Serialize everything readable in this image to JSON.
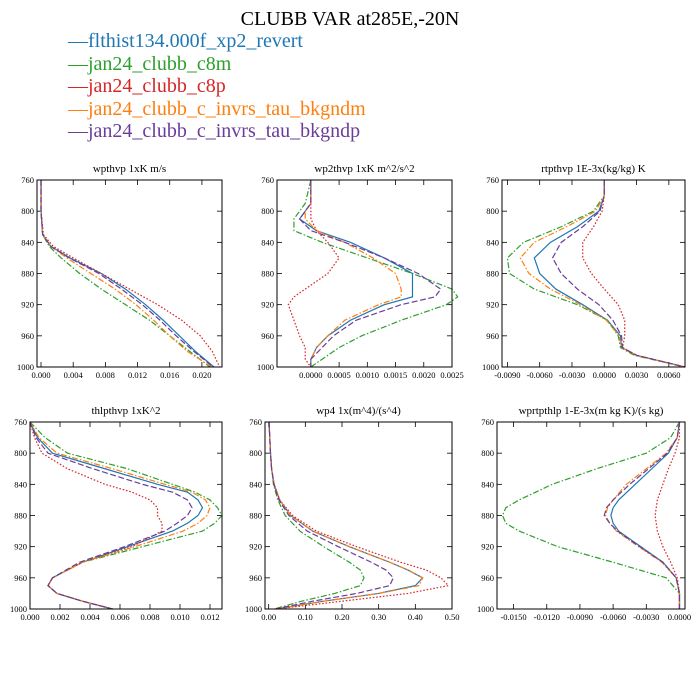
{
  "title": "CLUBB VAR at285E,-20N",
  "colors": {
    "blue": "#1f77b4",
    "green": "#2ca02c",
    "red": "#d62728",
    "orange": "#ff7f0e",
    "purple": "#6a3d9a"
  },
  "legend": [
    {
      "label": "flthist134.000f_xp2_revert",
      "color": "#1f77b4",
      "dash": "solid"
    },
    {
      "label": "jan24_clubb_c8m",
      "color": "#2ca02c",
      "dash": "dashdot"
    },
    {
      "label": "jan24_clubb_c8p",
      "color": "#d62728",
      "dash": "dot"
    },
    {
      "label": "jan24_clubb_c_invrs_tau_bkgndm",
      "color": "#ff7f0e",
      "dash": "dashdot"
    },
    {
      "label": "jan24_clubb_c_invrs_tau_bkgndp",
      "color": "#6a3d9a",
      "dash": "dash"
    }
  ],
  "chart_data": [
    {
      "type": "line",
      "title": "wpthvp   1xK m/s",
      "xlim": [
        -0.0005,
        0.0225
      ],
      "ylim": [
        760,
        1000
      ],
      "y_inverted": true,
      "yticks": [
        760,
        800,
        840,
        880,
        920,
        960,
        1000
      ],
      "xticks": [
        0,
        0.004,
        0.008,
        0.012,
        0.016,
        0.02
      ],
      "xticklabels": [
        "0.000",
        "0.004",
        "0.008",
        "0.012",
        "0.016",
        "0.020"
      ],
      "y": [
        760,
        800,
        830,
        845,
        860,
        880,
        900,
        920,
        940,
        960,
        980,
        1000
      ],
      "series": [
        {
          "values": [
            0,
            0,
            0.0002,
            0.0012,
            0.0036,
            0.0075,
            0.0105,
            0.013,
            0.0152,
            0.0172,
            0.0192,
            0.0215
          ]
        },
        {
          "values": [
            0,
            0,
            0.0002,
            0.001,
            0.0025,
            0.0048,
            0.0075,
            0.0105,
            0.0135,
            0.016,
            0.0185,
            0.021
          ]
        },
        {
          "values": [
            0,
            0,
            0.0003,
            0.0015,
            0.004,
            0.0075,
            0.011,
            0.0145,
            0.0175,
            0.0198,
            0.0213,
            0.0222
          ]
        },
        {
          "values": [
            0,
            0,
            0.0002,
            0.0012,
            0.0032,
            0.0062,
            0.0092,
            0.0118,
            0.014,
            0.016,
            0.0182,
            0.0212
          ]
        },
        {
          "values": [
            0,
            0,
            0.0002,
            0.0012,
            0.0035,
            0.0072,
            0.01,
            0.0126,
            0.0148,
            0.0168,
            0.019,
            0.0214
          ]
        }
      ]
    },
    {
      "type": "line",
      "title": "wp2thvp   1xK m^2/s^2",
      "xlim": [
        -0.0006,
        0.0025
      ],
      "ylim": [
        760,
        1000
      ],
      "y_inverted": true,
      "yticks": [
        760,
        800,
        840,
        880,
        920,
        960,
        1000
      ],
      "xticks": [
        0,
        0.0005,
        0.001,
        0.0015,
        0.002,
        0.0025
      ],
      "xticklabels": [
        "0.0000",
        "0.0005",
        "0.0010",
        "0.0015",
        "0.0020",
        "0.0025"
      ],
      "y": [
        760,
        790,
        800,
        810,
        825,
        840,
        860,
        880,
        900,
        910,
        920,
        940,
        960,
        975,
        990,
        1000
      ],
      "series": [
        {
          "values": [
            0,
            0,
            -0.0001,
            -0.0002,
            0.0001,
            0.0007,
            0.0013,
            0.0018,
            0.0018,
            0.0018,
            0.0013,
            0.0007,
            0.0003,
            0.0001,
            0,
            0
          ]
        },
        {
          "values": [
            0,
            -0.0001,
            -0.0002,
            -0.0003,
            -0.0003,
            0.0002,
            0.001,
            0.0018,
            0.0025,
            0.0026,
            0.0024,
            0.0016,
            0.0009,
            0.0005,
            0.0002,
            0
          ]
        },
        {
          "values": [
            0,
            0,
            0,
            0,
            0.0001,
            0.0003,
            0.0005,
            0.0003,
            -0.0001,
            -0.0003,
            -0.0004,
            -0.0003,
            -0.0002,
            -0.0001,
            -0.0001,
            0
          ]
        },
        {
          "values": [
            0,
            0,
            -0.0001,
            -0.0001,
            0.0001,
            0.0006,
            0.0011,
            0.0015,
            0.0016,
            0.0016,
            0.0012,
            0.0006,
            0.0003,
            0.0001,
            0,
            0
          ]
        },
        {
          "values": [
            0,
            0,
            -0.0001,
            -0.0002,
            0,
            0.0006,
            0.0013,
            0.0019,
            0.0023,
            0.0022,
            0.0016,
            0.0008,
            0.0004,
            0.0002,
            0,
            0
          ]
        }
      ]
    },
    {
      "type": "line",
      "title": "rtpthvp   1E-3x(kg/kg) K",
      "xlim": [
        -0.0095,
        0.0075
      ],
      "ylim": [
        760,
        1000
      ],
      "y_inverted": true,
      "yticks": [
        760,
        800,
        840,
        880,
        920,
        960,
        1000
      ],
      "xticks": [
        -0.009,
        -0.006,
        -0.003,
        0,
        0.003,
        0.006
      ],
      "xticklabels": [
        "-0.0090",
        "-0.0060",
        "-0.0030",
        "0.0000",
        "0.0030",
        "0.0060"
      ],
      "y": [
        760,
        780,
        800,
        820,
        840,
        860,
        880,
        900,
        920,
        940,
        960,
        975,
        985,
        1000
      ],
      "series": [
        {
          "values": [
            0,
            0,
            -0.0005,
            -0.0025,
            -0.005,
            -0.0065,
            -0.006,
            -0.0045,
            -0.002,
            0.0003,
            0.0015,
            0.0016,
            0.003,
            0.0075
          ]
        },
        {
          "values": [
            0,
            0,
            -0.001,
            -0.004,
            -0.0075,
            -0.009,
            -0.0088,
            -0.0065,
            -0.0025,
            0.0003,
            0.0013,
            0.0015,
            0.0028,
            0.0075
          ]
        },
        {
          "values": [
            0,
            0,
            -0.0002,
            -0.001,
            -0.002,
            -0.002,
            -0.0012,
            0,
            0.0013,
            0.0019,
            0.0019,
            0.0017,
            0.003,
            0.0075
          ]
        },
        {
          "values": [
            0,
            0,
            -0.0008,
            -0.0035,
            -0.0065,
            -0.0078,
            -0.007,
            -0.005,
            -0.0022,
            0.0002,
            0.0014,
            0.0016,
            0.003,
            0.0075
          ]
        },
        {
          "values": [
            0,
            0,
            -0.0004,
            -0.002,
            -0.004,
            -0.0048,
            -0.004,
            -0.0025,
            -0.0005,
            0.0008,
            0.0016,
            0.0017,
            0.003,
            0.0075
          ]
        }
      ]
    },
    {
      "type": "line",
      "title": "thlpthvp   1xK^2",
      "xlim": [
        0,
        0.0128
      ],
      "ylim": [
        760,
        1000
      ],
      "y_inverted": true,
      "yticks": [
        760,
        800,
        840,
        880,
        920,
        960,
        1000
      ],
      "xticks": [
        0,
        0.002,
        0.004,
        0.006,
        0.008,
        0.01,
        0.012
      ],
      "xticklabels": [
        "0.000",
        "0.002",
        "0.004",
        "0.006",
        "0.008",
        "0.010",
        "0.012"
      ],
      "y": [
        760,
        780,
        800,
        820,
        840,
        850,
        860,
        870,
        880,
        890,
        900,
        920,
        940,
        960,
        970,
        980,
        990,
        1000
      ],
      "series": [
        {
          "values": [
            0,
            0.0005,
            0.0015,
            0.005,
            0.0085,
            0.0105,
            0.0112,
            0.0115,
            0.0112,
            0.0105,
            0.0095,
            0.0065,
            0.0035,
            0.0015,
            0.0012,
            0.0018,
            0.0035,
            0.0055
          ]
        },
        {
          "values": [
            0,
            0.001,
            0.0025,
            0.0065,
            0.0095,
            0.011,
            0.012,
            0.0125,
            0.0128,
            0.0123,
            0.0115,
            0.0075,
            0.0035,
            0.0015,
            0.0012,
            0.0018,
            0.0035,
            0.0055
          ]
        },
        {
          "values": [
            0,
            0.0003,
            0.0008,
            0.0025,
            0.005,
            0.0068,
            0.008,
            0.0085,
            0.0085,
            0.0088,
            0.0088,
            0.0068,
            0.0035,
            0.0015,
            0.0012,
            0.0018,
            0.0035,
            0.0055
          ]
        },
        {
          "values": [
            0,
            0.0006,
            0.0018,
            0.0055,
            0.009,
            0.0108,
            0.0117,
            0.012,
            0.0118,
            0.0112,
            0.0102,
            0.007,
            0.0035,
            0.0015,
            0.0012,
            0.0018,
            0.0035,
            0.0055
          ]
        },
        {
          "values": [
            0,
            0.0004,
            0.0012,
            0.0042,
            0.0075,
            0.0095,
            0.0105,
            0.0108,
            0.0105,
            0.0098,
            0.009,
            0.0063,
            0.0033,
            0.0015,
            0.0012,
            0.0018,
            0.0035,
            0.0055
          ]
        }
      ]
    },
    {
      "type": "line",
      "title": "wp4   1x(m^4)/(s^4)",
      "xlim": [
        -0.01,
        0.5
      ],
      "ylim": [
        760,
        1000
      ],
      "y_inverted": true,
      "yticks": [
        760,
        800,
        840,
        880,
        920,
        960,
        1000
      ],
      "xticks": [
        0,
        0.1,
        0.2,
        0.3,
        0.4,
        0.5
      ],
      "xticklabels": [
        "0.00",
        "0.10",
        "0.20",
        "0.30",
        "0.40",
        "0.50"
      ],
      "y": [
        760,
        800,
        820,
        840,
        860,
        880,
        900,
        920,
        940,
        950,
        960,
        970,
        980,
        990,
        1000
      ],
      "series": [
        {
          "values": [
            0.001,
            0.005,
            0.008,
            0.015,
            0.03,
            0.06,
            0.12,
            0.22,
            0.33,
            0.38,
            0.42,
            0.4,
            0.3,
            0.15,
            0.02
          ]
        },
        {
          "values": [
            0.001,
            0.005,
            0.008,
            0.013,
            0.025,
            0.045,
            0.085,
            0.15,
            0.22,
            0.25,
            0.26,
            0.25,
            0.18,
            0.09,
            0.015
          ]
        },
        {
          "values": [
            0.001,
            0.005,
            0.008,
            0.015,
            0.03,
            0.065,
            0.13,
            0.24,
            0.36,
            0.43,
            0.47,
            0.49,
            0.38,
            0.2,
            0.02
          ]
        },
        {
          "values": [
            0.001,
            0.005,
            0.008,
            0.015,
            0.03,
            0.06,
            0.12,
            0.22,
            0.33,
            0.38,
            0.42,
            0.41,
            0.3,
            0.15,
            0.02
          ]
        },
        {
          "values": [
            0.001,
            0.005,
            0.008,
            0.014,
            0.028,
            0.055,
            0.105,
            0.19,
            0.28,
            0.32,
            0.34,
            0.33,
            0.24,
            0.12,
            0.018
          ]
        }
      ]
    },
    {
      "type": "line",
      "title": "wprtpthlp   1-E-3x(m kg K)/(s kg)",
      "xlim": [
        -0.0165,
        0.0005
      ],
      "ylim": [
        760,
        1000
      ],
      "y_inverted": true,
      "yticks": [
        760,
        800,
        840,
        880,
        920,
        960,
        1000
      ],
      "xticks": [
        -0.015,
        -0.012,
        -0.009,
        -0.006,
        -0.003,
        0
      ],
      "xticklabels": [
        "-0.0150",
        "-0.0120",
        "-0.0090",
        "-0.0060",
        "-0.0030",
        "0.0000"
      ],
      "y": [
        760,
        780,
        800,
        820,
        840,
        860,
        870,
        880,
        890,
        900,
        920,
        940,
        960,
        980,
        1000
      ],
      "series": [
        {
          "values": [
            0,
            -0.0002,
            -0.001,
            -0.0025,
            -0.004,
            -0.0055,
            -0.006,
            -0.0062,
            -0.006,
            -0.0055,
            -0.0035,
            -0.0015,
            -0.0003,
            0,
            0
          ]
        },
        {
          "values": [
            0,
            -0.0008,
            -0.003,
            -0.0075,
            -0.0115,
            -0.0145,
            -0.0157,
            -0.016,
            -0.0157,
            -0.0145,
            -0.011,
            -0.006,
            -0.0012,
            0,
            0
          ]
        },
        {
          "values": [
            0,
            0,
            -0.0004,
            -0.001,
            -0.0015,
            -0.002,
            -0.0021,
            -0.0022,
            -0.0021,
            -0.002,
            -0.0015,
            -0.0008,
            -0.0002,
            0,
            0
          ]
        },
        {
          "values": [
            0,
            -0.0002,
            -0.0012,
            -0.003,
            -0.0048,
            -0.006,
            -0.0065,
            -0.0067,
            -0.0063,
            -0.0057,
            -0.0037,
            -0.0016,
            -0.0003,
            0,
            0
          ]
        },
        {
          "values": [
            0,
            -0.0002,
            -0.0011,
            -0.0028,
            -0.0045,
            -0.006,
            -0.0066,
            -0.0068,
            -0.0063,
            -0.0056,
            -0.0036,
            -0.0015,
            -0.0003,
            0,
            0
          ]
        }
      ]
    }
  ]
}
